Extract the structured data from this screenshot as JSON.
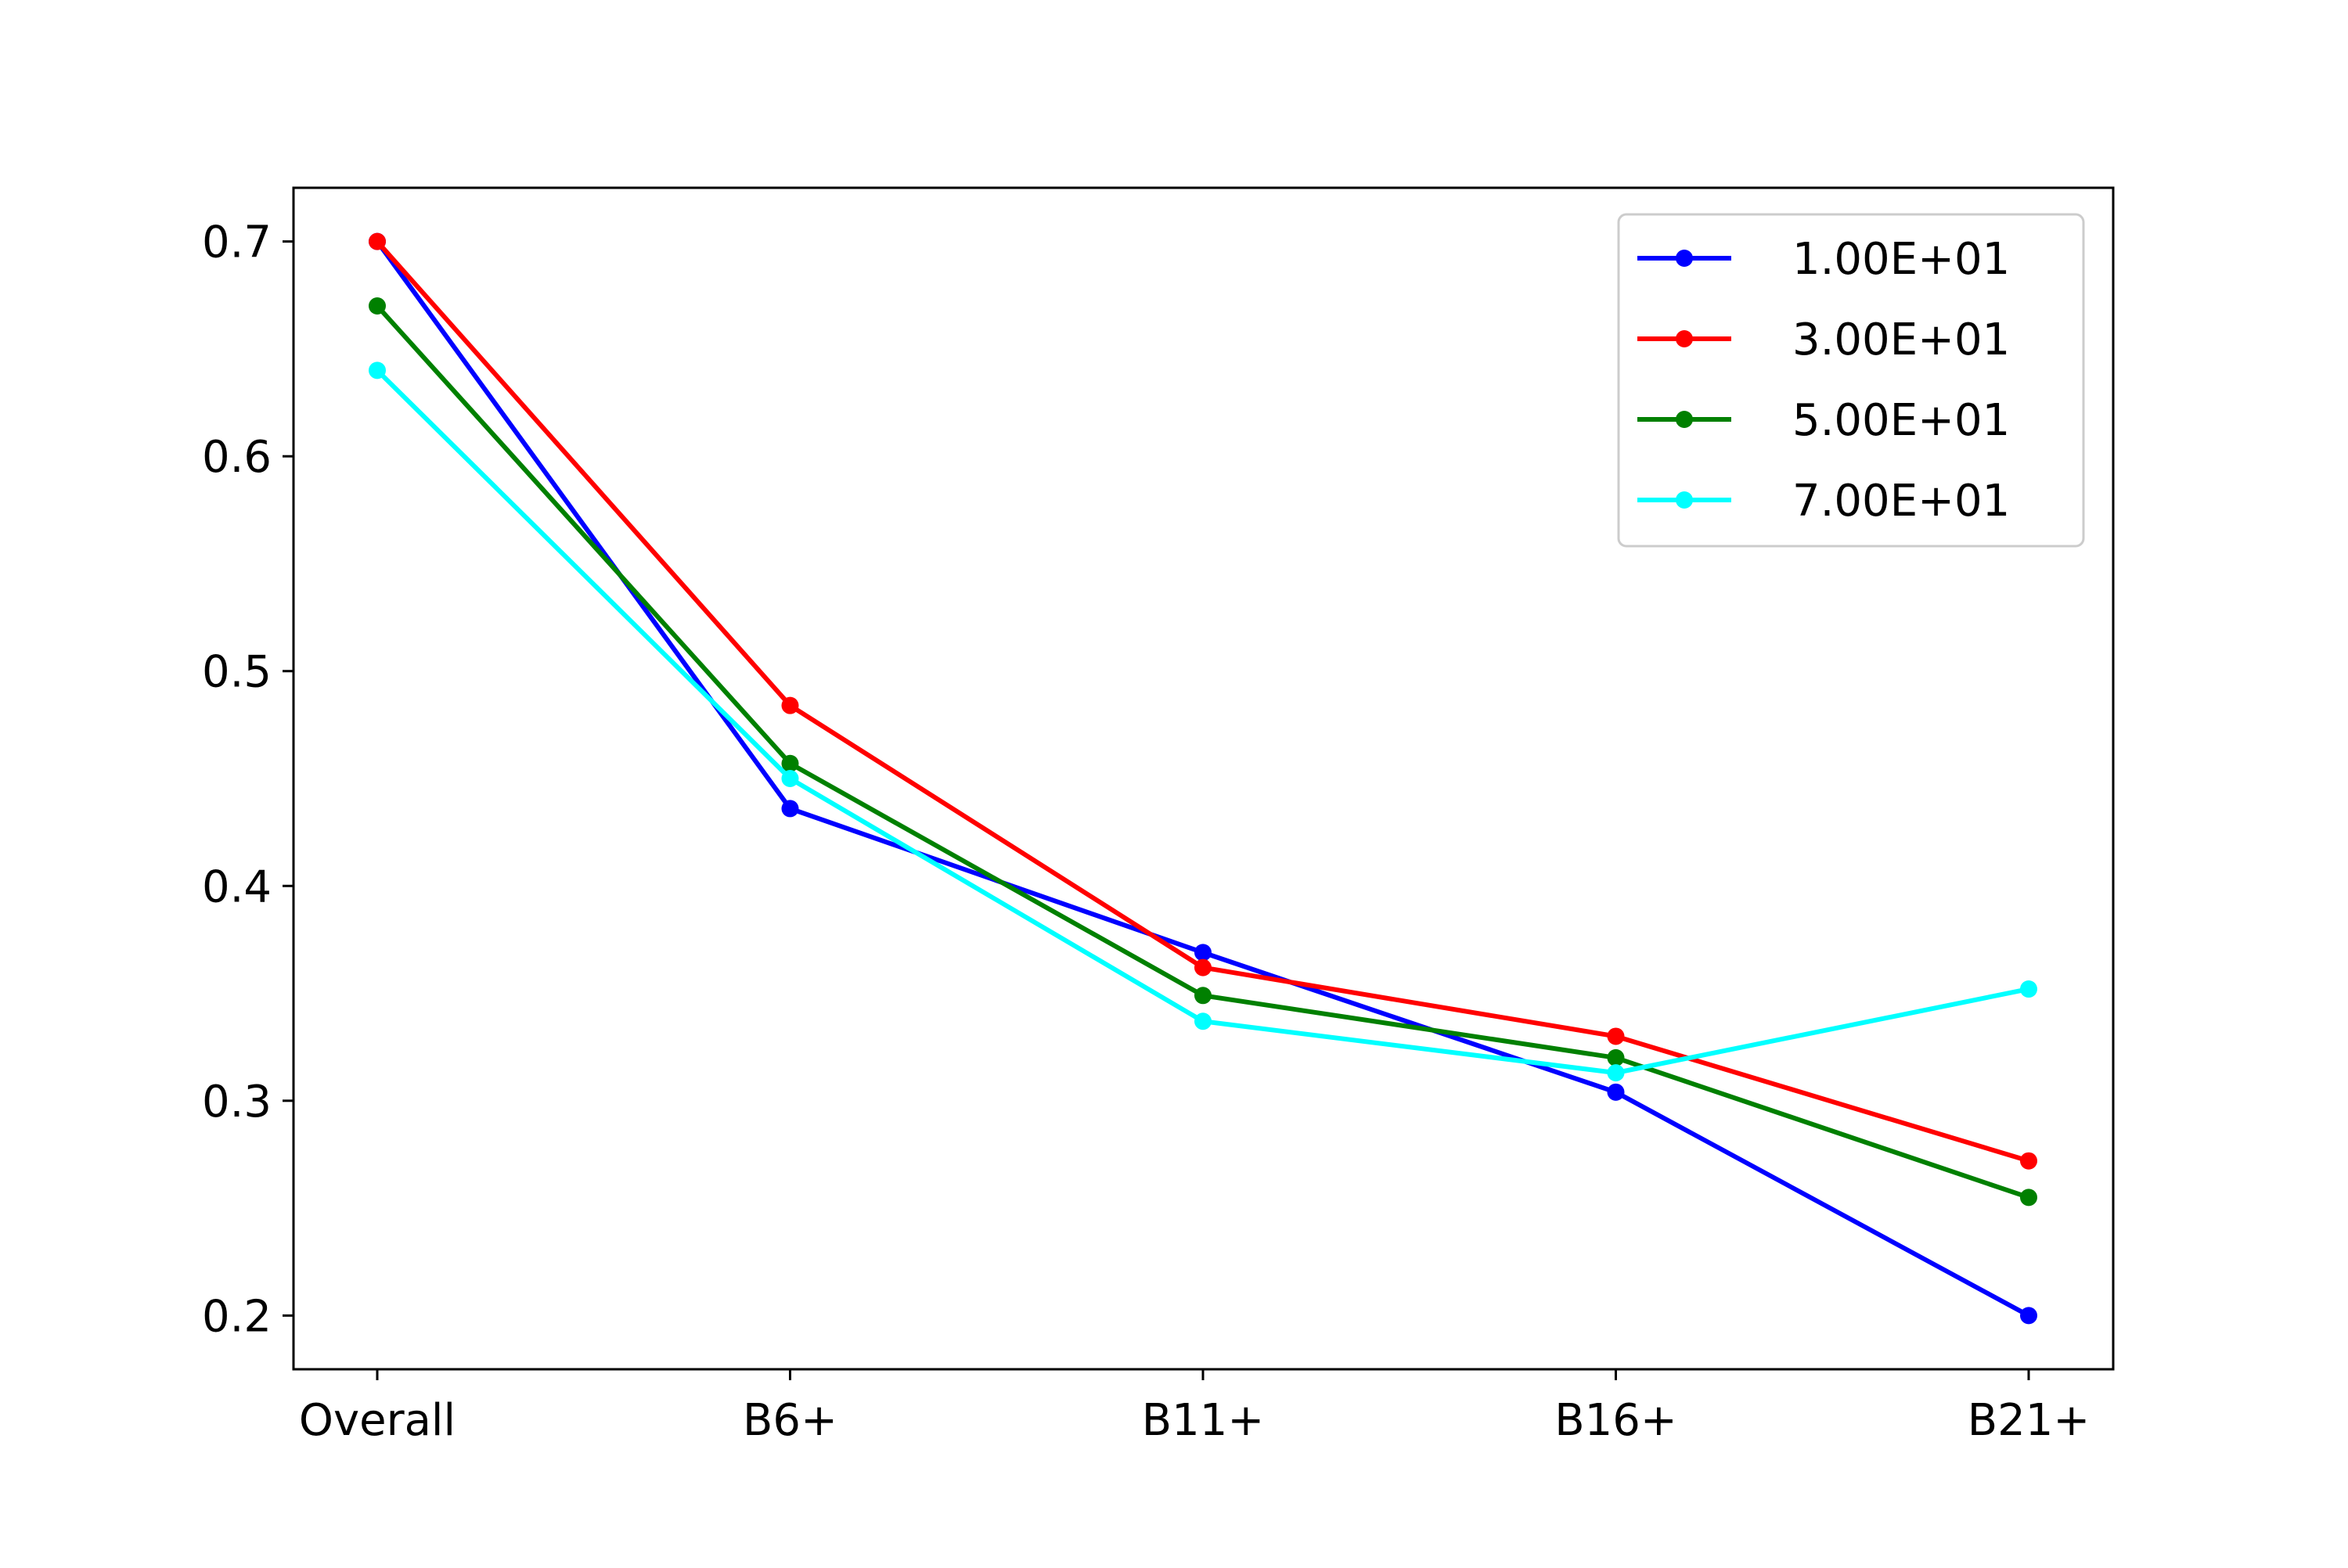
{
  "chart_data": {
    "type": "line",
    "title": "",
    "xlabel": "",
    "ylabel": "",
    "categories": [
      "Overall",
      "B6+",
      "B11+",
      "B16+",
      "B21+"
    ],
    "ylim": [
      0.175,
      0.725
    ],
    "yticks": [
      0.2,
      0.3,
      0.4,
      0.5,
      0.6,
      0.7
    ],
    "ytick_labels": [
      "0.2",
      "0.3",
      "0.4",
      "0.5",
      "0.6",
      "0.7"
    ],
    "grid": false,
    "legend_position": "top-right",
    "series": [
      {
        "name": "1.00E+01",
        "color": "#0000ff",
        "values": [
          0.7,
          0.436,
          0.369,
          0.304,
          0.2
        ]
      },
      {
        "name": "3.00E+01",
        "color": "#ff0000",
        "values": [
          0.7,
          0.484,
          0.362,
          0.33,
          0.272
        ]
      },
      {
        "name": "5.00E+01",
        "color": "#008000",
        "values": [
          0.67,
          0.457,
          0.349,
          0.32,
          0.255
        ]
      },
      {
        "name": "7.00E+01",
        "color": "#00ffff",
        "values": [
          0.64,
          0.45,
          0.337,
          0.313,
          0.352
        ]
      }
    ]
  }
}
